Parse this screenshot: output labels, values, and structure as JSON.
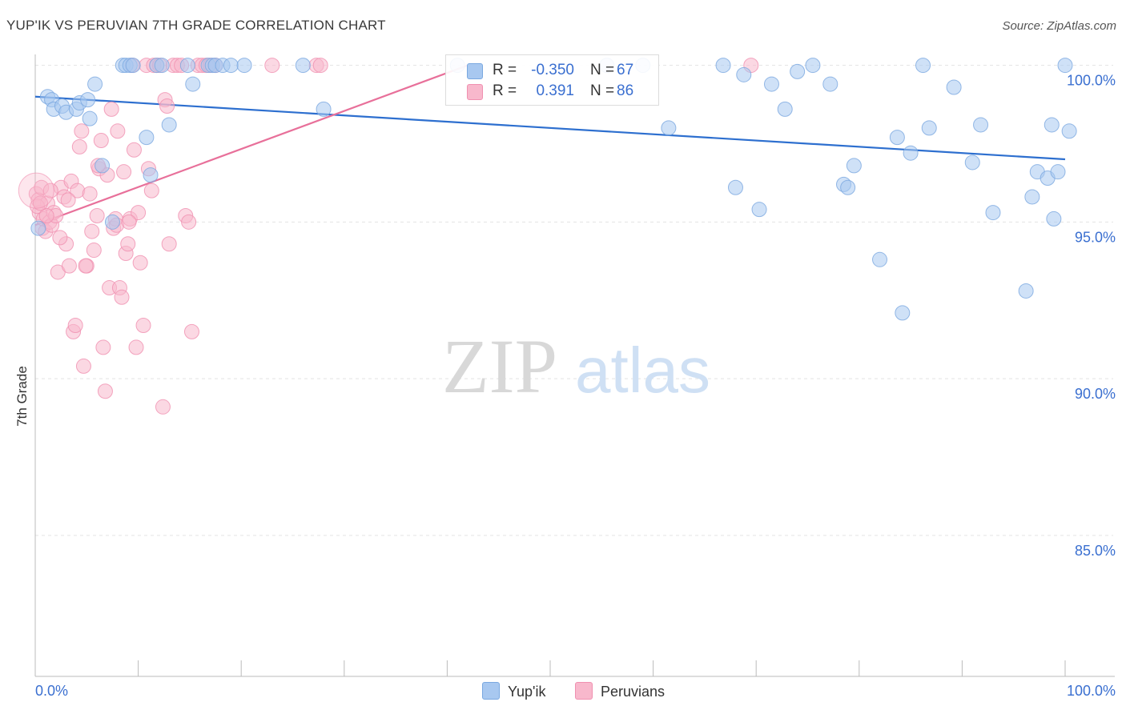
{
  "title": "YUP'IK VS PERUVIAN 7TH GRADE CORRELATION CHART",
  "source": "Source: ZipAtlas.com",
  "watermark": {
    "zip": "ZIP",
    "atlas": "atlas"
  },
  "colors": {
    "yupik_fill": "#a8c8f0",
    "yupik_stroke": "#7aa8e0",
    "yupik_line": "#2d6fcf",
    "peru_fill": "#f8b8cc",
    "peru_stroke": "#f090b0",
    "peru_line": "#e8709a",
    "axis_text": "#3a6fd0",
    "grid": "#e4e4e4"
  },
  "legend_top": {
    "rows": [
      {
        "r_label": "R =",
        "r_value": "-0.350",
        "n_label": "N =",
        "n_value": "67"
      },
      {
        "r_label": "R =",
        "r_value": "0.391",
        "n_label": "N =",
        "n_value": "86"
      }
    ]
  },
  "legend_bottom": {
    "items": [
      "Yup'ik",
      "Peruvians"
    ]
  },
  "chart_data": {
    "type": "scatter",
    "title": "YUP'IK VS PERUVIAN 7TH GRADE CORRELATION CHART",
    "xlabel": "",
    "ylabel": "7th Grade",
    "xlim": [
      0,
      100
    ],
    "ylim": [
      80.5,
      100.5
    ],
    "x_tick_labels": [
      "0.0%",
      "100.0%"
    ],
    "y_ticks": [
      85,
      90,
      95,
      100
    ],
    "y_tick_labels": [
      "85.0%",
      "90.0%",
      "95.0%",
      "100.0%"
    ],
    "grid": true,
    "legend_position": "top-center",
    "series": [
      {
        "name": "Yup'ik",
        "r": -0.35,
        "n": 67,
        "trend": {
          "x": [
            0,
            100
          ],
          "y": [
            99.0,
            97.0
          ]
        },
        "points": [
          [
            0.3,
            94.8
          ],
          [
            1.2,
            99.0
          ],
          [
            1.6,
            98.9
          ],
          [
            1.8,
            98.6
          ],
          [
            2.6,
            98.7
          ],
          [
            3.0,
            98.5
          ],
          [
            4.0,
            98.6
          ],
          [
            4.3,
            98.8
          ],
          [
            5.1,
            98.9
          ],
          [
            5.3,
            98.3
          ],
          [
            5.8,
            99.4
          ],
          [
            6.5,
            96.8
          ],
          [
            7.5,
            95.0
          ],
          [
            8.5,
            100.0
          ],
          [
            8.8,
            100.0
          ],
          [
            9.2,
            100.0
          ],
          [
            9.5,
            100.0
          ],
          [
            10.8,
            97.7
          ],
          [
            11.2,
            96.5
          ],
          [
            11.8,
            100.0
          ],
          [
            12.3,
            100.0
          ],
          [
            13.0,
            98.1
          ],
          [
            14.8,
            100.0
          ],
          [
            15.3,
            99.4
          ],
          [
            16.8,
            100.0
          ],
          [
            17.2,
            100.0
          ],
          [
            17.5,
            100.0
          ],
          [
            18.2,
            100.0
          ],
          [
            19.0,
            100.0
          ],
          [
            20.3,
            100.0
          ],
          [
            26.0,
            100.0
          ],
          [
            28.0,
            98.6
          ],
          [
            41.0,
            100.0
          ],
          [
            55.5,
            100.0
          ],
          [
            59.0,
            100.0
          ],
          [
            61.5,
            98.0
          ],
          [
            66.8,
            100.0
          ],
          [
            68.0,
            96.1
          ],
          [
            68.8,
            99.7
          ],
          [
            70.3,
            95.4
          ],
          [
            71.5,
            99.4
          ],
          [
            72.8,
            98.6
          ],
          [
            74.0,
            99.8
          ],
          [
            75.5,
            100.0
          ],
          [
            77.2,
            99.4
          ],
          [
            78.5,
            96.2
          ],
          [
            78.9,
            96.1
          ],
          [
            79.5,
            96.8
          ],
          [
            82.0,
            93.8
          ],
          [
            83.7,
            97.7
          ],
          [
            84.2,
            92.1
          ],
          [
            85.0,
            97.2
          ],
          [
            86.2,
            100.0
          ],
          [
            86.8,
            98.0
          ],
          [
            89.2,
            99.3
          ],
          [
            91.0,
            96.9
          ],
          [
            91.8,
            98.1
          ],
          [
            93.0,
            95.3
          ],
          [
            96.2,
            92.8
          ],
          [
            96.8,
            95.8
          ],
          [
            97.3,
            96.6
          ],
          [
            98.3,
            96.4
          ],
          [
            98.7,
            98.1
          ],
          [
            98.9,
            95.1
          ],
          [
            99.3,
            96.6
          ],
          [
            100.0,
            100.0
          ],
          [
            100.4,
            97.9
          ]
        ]
      },
      {
        "name": "Peruvians",
        "r": 0.391,
        "n": 86,
        "trend": {
          "x": [
            0,
            42
          ],
          "y": [
            94.9,
            100.0
          ]
        },
        "points": [
          [
            0.1,
            95.9
          ],
          [
            0.3,
            95.7
          ],
          [
            0.4,
            95.3
          ],
          [
            0.6,
            96.1
          ],
          [
            0.7,
            94.8
          ],
          [
            0.8,
            95.1
          ],
          [
            1.0,
            94.7
          ],
          [
            1.2,
            95.6
          ],
          [
            1.4,
            95.0
          ],
          [
            1.6,
            94.9
          ],
          [
            1.8,
            95.3
          ],
          [
            2.0,
            95.2
          ],
          [
            2.2,
            93.4
          ],
          [
            2.5,
            96.1
          ],
          [
            2.8,
            95.8
          ],
          [
            3.0,
            94.3
          ],
          [
            3.3,
            93.6
          ],
          [
            3.5,
            96.3
          ],
          [
            3.7,
            91.5
          ],
          [
            3.9,
            91.7
          ],
          [
            4.1,
            96.0
          ],
          [
            4.3,
            97.4
          ],
          [
            4.5,
            97.9
          ],
          [
            4.7,
            90.4
          ],
          [
            5.0,
            93.6
          ],
          [
            5.3,
            95.9
          ],
          [
            5.5,
            94.7
          ],
          [
            5.7,
            94.1
          ],
          [
            6.0,
            95.2
          ],
          [
            6.2,
            96.7
          ],
          [
            6.4,
            97.6
          ],
          [
            6.6,
            91.0
          ],
          [
            6.8,
            89.6
          ],
          [
            7.0,
            96.5
          ],
          [
            7.2,
            92.9
          ],
          [
            7.4,
            98.6
          ],
          [
            7.6,
            94.8
          ],
          [
            7.8,
            95.1
          ],
          [
            8.0,
            97.9
          ],
          [
            8.2,
            92.9
          ],
          [
            8.4,
            92.6
          ],
          [
            8.6,
            96.6
          ],
          [
            8.8,
            94.0
          ],
          [
            9.0,
            94.3
          ],
          [
            9.2,
            95.1
          ],
          [
            9.4,
            100.0
          ],
          [
            9.6,
            97.3
          ],
          [
            9.8,
            91.0
          ],
          [
            10.0,
            95.3
          ],
          [
            10.2,
            93.7
          ],
          [
            10.5,
            91.7
          ],
          [
            10.8,
            100.0
          ],
          [
            11.0,
            96.7
          ],
          [
            11.3,
            96.0
          ],
          [
            11.5,
            100.0
          ],
          [
            11.8,
            100.0
          ],
          [
            12.1,
            100.0
          ],
          [
            12.4,
            89.1
          ],
          [
            12.6,
            98.9
          ],
          [
            12.8,
            98.7
          ],
          [
            13.0,
            94.3
          ],
          [
            13.4,
            100.0
          ],
          [
            13.8,
            100.0
          ],
          [
            14.2,
            100.0
          ],
          [
            14.6,
            95.2
          ],
          [
            14.9,
            95.0
          ],
          [
            15.2,
            91.5
          ],
          [
            15.8,
            100.0
          ],
          [
            16.2,
            100.0
          ],
          [
            16.6,
            100.0
          ],
          [
            17.0,
            100.0
          ],
          [
            17.5,
            100.0
          ],
          [
            23.0,
            100.0
          ],
          [
            27.3,
            100.0
          ],
          [
            27.7,
            100.0
          ],
          [
            69.5,
            100.0
          ],
          [
            0.2,
            95.5
          ],
          [
            1.1,
            95.2
          ],
          [
            2.4,
            94.5
          ],
          [
            3.2,
            95.7
          ],
          [
            4.9,
            93.6
          ],
          [
            6.1,
            96.8
          ],
          [
            7.9,
            94.9
          ],
          [
            9.1,
            95.0
          ],
          [
            0.5,
            95.6
          ],
          [
            1.5,
            96.0
          ]
        ]
      }
    ]
  }
}
